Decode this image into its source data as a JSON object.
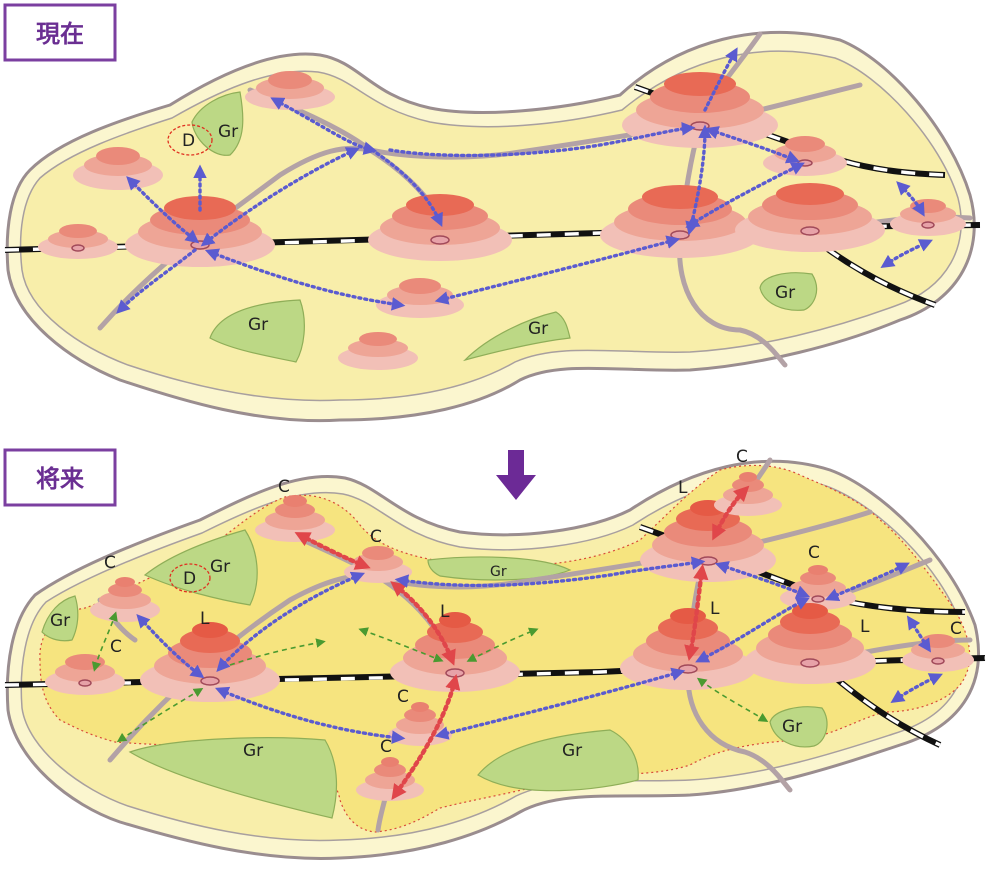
{
  "panels": {
    "top": {
      "label": "現在"
    },
    "bottom": {
      "label": "将来"
    }
  },
  "labels": {
    "green": "Gr",
    "district": "D",
    "local": "L",
    "community": "C"
  },
  "colors": {
    "frame": "#7b3fa0",
    "region_fill": "#fbf6cf",
    "core_fill": "#f6e47f",
    "green_space": "#bcd885",
    "center_dark": "#e85a40",
    "center_light": "#f2a7a0",
    "arrow_blue": "#5b5bd0",
    "arrow_red": "#e0464a",
    "arrow_green": "#4a9a30",
    "road": "#b3a2a6",
    "railway": "#111111",
    "transition_arrow": "#6c2a96"
  },
  "icons": [
    "down-arrow-icon",
    "center-mound-icon",
    "station-icon"
  ]
}
